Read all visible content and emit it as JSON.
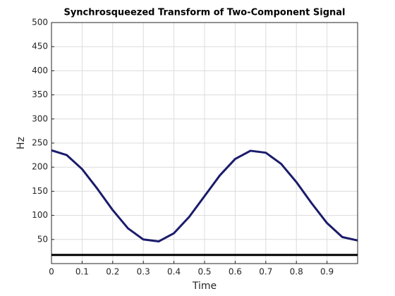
{
  "chart_data": {
    "type": "line",
    "title": "Synchrosqueezed Transform of Two-Component Signal",
    "x_label": "Time",
    "y_label": "Hz",
    "x": [
      0,
      0.05,
      0.1,
      0.15,
      0.2,
      0.25,
      0.3,
      0.35,
      0.4,
      0.45,
      0.5,
      0.55,
      0.6,
      0.65,
      0.7,
      0.75,
      0.8,
      0.85,
      0.9,
      0.95,
      1.0
    ],
    "series": [
      {
        "color": "#1b1b6b",
        "values": [
          235,
          225,
          196,
          155,
          111,
          73,
          50,
          46,
          63,
          97,
          140,
          183,
          217,
          234,
          230,
          207,
          169,
          125,
          84,
          55,
          48
        ]
      },
      {
        "color": "#000000",
        "values": [
          18,
          18,
          18,
          18,
          18,
          18,
          18,
          18,
          18,
          18,
          18,
          18,
          18,
          18,
          18,
          18,
          18,
          18,
          18,
          18,
          18
        ]
      }
    ],
    "xlim": [
      0,
      1
    ],
    "ylim": [
      0,
      500
    ],
    "xticks": [
      0,
      0.1,
      0.2,
      0.3,
      0.4,
      0.5,
      0.6,
      0.7,
      0.8,
      0.9
    ],
    "yticks": [
      50,
      100,
      150,
      200,
      250,
      300,
      350,
      400,
      450,
      500
    ],
    "grid": true
  }
}
